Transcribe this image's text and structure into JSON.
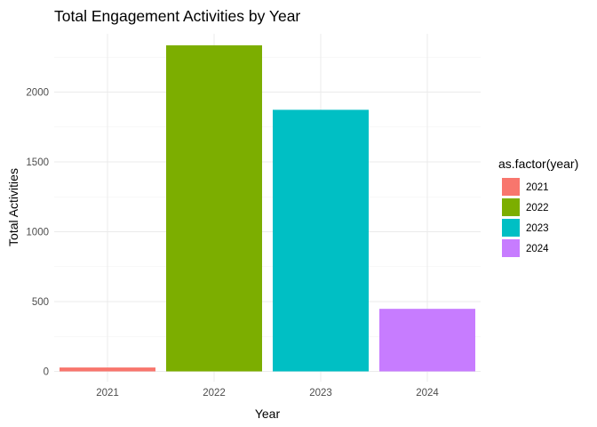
{
  "chart_data": {
    "type": "bar",
    "title": "Total Engagement Activities by Year",
    "xlabel": "Year",
    "ylabel": "Total Activities",
    "categories": [
      "2021",
      "2022",
      "2023",
      "2024"
    ],
    "values": [
      28,
      2335,
      1873,
      448
    ],
    "colors": [
      "#F8766D",
      "#7CAE00",
      "#00BFC4",
      "#C77CFF"
    ],
    "ylim": [
      0,
      2335
    ],
    "yticks": [
      0,
      500,
      1000,
      1500,
      2000
    ],
    "grid": true,
    "legend": {
      "title": "as.factor(year)",
      "position": "right",
      "labels": [
        "2021",
        "2022",
        "2023",
        "2024"
      ]
    }
  }
}
